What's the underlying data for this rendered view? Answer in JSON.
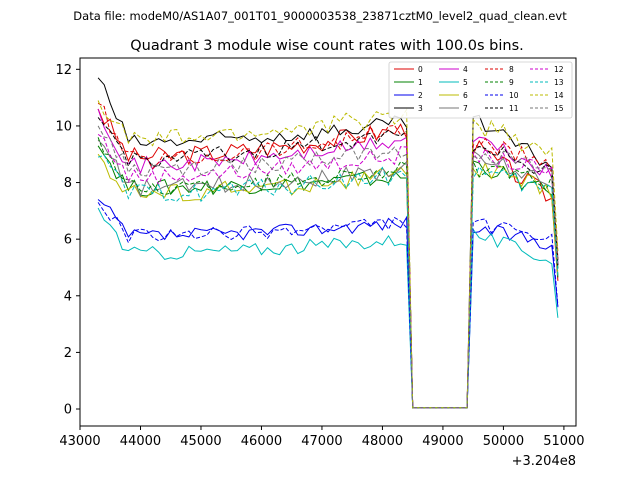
{
  "chart_data": {
    "type": "line",
    "suptitle": "Data file: modeM0/AS1A07_001T01_9000003538_23871cztM0_level2_quad_clean.evt",
    "title": "Quadrant 3 module wise count rates with 100.0s bins.",
    "xlabel": "",
    "ylabel": "",
    "x_offset_label": "+3.204e8",
    "xlim": [
      43000,
      51200
    ],
    "ylim": [
      -0.6,
      12.4
    ],
    "x_ticks": [
      "43000",
      "44000",
      "45000",
      "46000",
      "47000",
      "48000",
      "49000",
      "50000",
      "51000"
    ],
    "y_ticks": [
      "0",
      "2",
      "4",
      "6",
      "8",
      "10",
      "12"
    ],
    "legend_position": "top-right",
    "segments": {
      "first": {
        "x_start": 43300,
        "x_end": 48400,
        "bins": 52
      },
      "gap_drop_x": 48500,
      "gap_rise_x": 49400,
      "second": {
        "x_start": 49500,
        "x_end": 50900,
        "bins": 15
      }
    },
    "series": [
      {
        "name": "0",
        "color": "#dd0000",
        "dash": "solid",
        "start": 10.6,
        "level": 8.9,
        "end_level": 9.9,
        "after_peak": 9.3,
        "after_level": 7.3,
        "noise": 0.35
      },
      {
        "name": "1",
        "color": "#008000",
        "dash": "solid",
        "start": 9.3,
        "level": 7.8,
        "end_level": 8.2,
        "after_peak": 8.7,
        "after_level": 7.5,
        "noise": 0.3
      },
      {
        "name": "2",
        "color": "#0000ee",
        "dash": "solid",
        "start": 7.4,
        "level": 6.1,
        "end_level": 6.6,
        "after_peak": 6.4,
        "after_level": 5.8,
        "noise": 0.25
      },
      {
        "name": "3",
        "color": "#000000",
        "dash": "solid",
        "start": 11.7,
        "level": 9.4,
        "end_level": 10.1,
        "after_peak": 10.2,
        "after_level": 8.5,
        "noise": 0.3
      },
      {
        "name": "4",
        "color": "#cc00cc",
        "dash": "solid",
        "start": 10.6,
        "level": 8.6,
        "end_level": 9.5,
        "after_peak": 9.6,
        "after_level": 8.2,
        "noise": 0.3
      },
      {
        "name": "5",
        "color": "#00bbbb",
        "dash": "solid",
        "start": 7.1,
        "level": 5.5,
        "end_level": 6.0,
        "after_peak": 6.2,
        "after_level": 5.2,
        "noise": 0.25
      },
      {
        "name": "6",
        "color": "#bbbb00",
        "dash": "solid",
        "start": 9.0,
        "level": 7.6,
        "end_level": 8.3,
        "after_peak": 8.6,
        "after_level": 7.6,
        "noise": 0.35
      },
      {
        "name": "7",
        "color": "#777777",
        "dash": "solid",
        "start": 9.5,
        "level": 7.8,
        "end_level": 8.5,
        "after_peak": 8.9,
        "after_level": 8.0,
        "noise": 0.3
      },
      {
        "name": "8",
        "color": "#dd0000",
        "dash": "dashed",
        "start": 10.8,
        "level": 8.8,
        "end_level": 9.9,
        "after_peak": 9.4,
        "after_level": 8.6,
        "noise": 0.35
      },
      {
        "name": "9",
        "color": "#008000",
        "dash": "dashed",
        "start": 9.6,
        "level": 7.8,
        "end_level": 8.5,
        "after_peak": 8.5,
        "after_level": 7.9,
        "noise": 0.3
      },
      {
        "name": "10",
        "color": "#0000ee",
        "dash": "dashed",
        "start": 7.3,
        "level": 6.1,
        "end_level": 6.6,
        "after_peak": 6.6,
        "after_level": 5.9,
        "noise": 0.25
      },
      {
        "name": "11",
        "color": "#000000",
        "dash": "dashed",
        "start": 10.3,
        "level": 8.8,
        "end_level": 9.8,
        "after_peak": 9.4,
        "after_level": 8.2,
        "noise": 0.3
      },
      {
        "name": "12",
        "color": "#cc00cc",
        "dash": "dashed",
        "start": 9.7,
        "level": 8.2,
        "end_level": 9.0,
        "after_peak": 9.0,
        "after_level": 8.3,
        "noise": 0.3
      },
      {
        "name": "13",
        "color": "#00bbbb",
        "dash": "dashed",
        "start": 8.9,
        "level": 7.6,
        "end_level": 8.3,
        "after_peak": 8.4,
        "after_level": 7.6,
        "noise": 0.35
      },
      {
        "name": "14",
        "color": "#bbbb00",
        "dash": "dashed",
        "start": 10.9,
        "level": 9.5,
        "end_level": 10.4,
        "after_peak": 10.1,
        "after_level": 9.0,
        "noise": 0.35
      },
      {
        "name": "15",
        "color": "#777777",
        "dash": "dashed",
        "start": 10.0,
        "level": 8.4,
        "end_level": 9.2,
        "after_peak": 9.1,
        "after_level": 8.3,
        "noise": 0.3
      }
    ]
  }
}
